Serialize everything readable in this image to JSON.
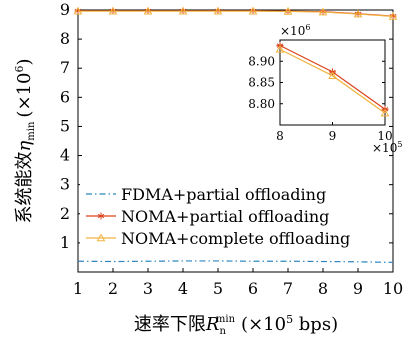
{
  "chart_data": {
    "type": "line",
    "xlabel": {
      "main": "速率下限",
      "symbol": "R",
      "sub": "n",
      "sup": "min",
      "unit_open": "(×10",
      "unit_exp": "5",
      "unit_close": " bps)"
    },
    "ylabel": {
      "main": "系统能效",
      "symbol": "η",
      "sub": "min",
      "unit_open": "(×10",
      "unit_exp": "6",
      "unit_close": ")"
    },
    "x": [
      1,
      2,
      3,
      4,
      5,
      6,
      7,
      8,
      9,
      10
    ],
    "xlim": [
      1,
      10
    ],
    "ylim": [
      0,
      9
    ],
    "x_ticks": [
      "1",
      "2",
      "3",
      "4",
      "5",
      "6",
      "7",
      "8",
      "9",
      "10"
    ],
    "y_ticks": [
      "1",
      "2",
      "3",
      "4",
      "5",
      "6",
      "7",
      "8",
      "9"
    ],
    "grid": false,
    "legend_position": "bottom-right",
    "series": [
      {
        "name": "FDMA+partial offloading",
        "style": "dash-dot",
        "marker": "none",
        "color": "#2e86c1",
        "values": [
          0.37,
          0.36,
          0.37,
          0.38,
          0.38,
          0.37,
          0.37,
          0.36,
          0.35,
          0.33
        ]
      },
      {
        "name": "NOMA+partial offloading",
        "style": "solid",
        "marker": "star",
        "color": "#d9421b",
        "values": [
          8.97,
          8.97,
          8.97,
          8.97,
          8.97,
          8.97,
          8.96,
          8.94,
          8.87,
          8.79
        ]
      },
      {
        "name": "NOMA+complete offloading",
        "style": "solid",
        "marker": "triangle",
        "color": "#f0b341",
        "values": [
          8.96,
          8.96,
          8.96,
          8.96,
          8.96,
          8.96,
          8.95,
          8.93,
          8.86,
          8.78
        ]
      }
    ],
    "inset": {
      "x": [
        8,
        9,
        10
      ],
      "xlim": [
        8,
        10
      ],
      "ylim": [
        8.75,
        8.95
      ],
      "x_ticks": [
        "8",
        "9",
        "10"
      ],
      "y_ticks": [
        "8.80",
        "8.85",
        "8.90"
      ],
      "x_scale_label": "×10",
      "x_scale_exp": "5",
      "y_scale_label": "×10",
      "y_scale_exp": "6",
      "series_values": [
        [
          8.937,
          8.875,
          8.787
        ],
        [
          8.928,
          8.866,
          8.778
        ]
      ]
    }
  }
}
